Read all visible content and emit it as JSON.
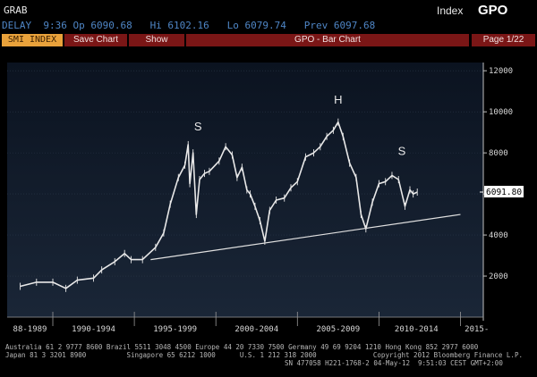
{
  "header": {
    "app_label": "GRAB",
    "index_label": "Index",
    "ticker": "GPO",
    "quote_line": "DELAY  9:36 Op 6090.68   Hi 6102.16   Lo 6079.74   Prev 6097.68"
  },
  "toolbar": {
    "security": "SMI INDEX",
    "save_chart_label": "Save Chart",
    "show_label": "Show",
    "chart_title": "GPO - Bar Chart",
    "page_label": "Page 1/22"
  },
  "chart_data": {
    "type": "line",
    "title": "GPO - Bar Chart",
    "xlabel": "",
    "ylabel": "",
    "ylim": [
      0,
      12000
    ],
    "yticks": [
      "2000",
      "4000",
      "6000",
      "8000",
      "10000",
      "12000"
    ],
    "period_labels": [
      "88-1989",
      "1990-1994",
      "1995-1999",
      "2000-2004",
      "2005-2009",
      "2010-2014",
      "2015-"
    ],
    "last_price_label": "6091.80",
    "pattern_labels": [
      "S",
      "H",
      "S"
    ],
    "series": [
      {
        "x": [
          1988.0,
          1989.0,
          1990.0,
          1990.8,
          1991.5,
          1992.5,
          1993.0,
          1993.8,
          1994.4,
          1994.8,
          1995.5,
          1996.3,
          1996.8,
          1997.2,
          1997.7,
          1998.1,
          1998.3,
          1998.4,
          1998.6,
          1998.8,
          1999.0,
          1999.3,
          1999.6,
          2000.2,
          2000.6,
          2001.0,
          2001.3,
          2001.6,
          2001.9,
          2002.1,
          2002.4,
          2002.7,
          2003.0,
          2003.3,
          2003.7,
          2004.2,
          2004.6,
          2005.0,
          2005.5,
          2006.0,
          2006.4,
          2006.8,
          2007.2,
          2007.5,
          2007.8,
          2008.2,
          2008.6,
          2008.9,
          2009.2,
          2009.6,
          2010.0,
          2010.4,
          2010.8,
          2011.2,
          2011.6,
          2011.9,
          2012.1,
          2012.35
        ],
        "y": [
          1500,
          1700,
          1700,
          1400,
          1800,
          1900,
          2300,
          2700,
          3100,
          2800,
          2800,
          3400,
          4100,
          5500,
          6800,
          7400,
          8400,
          6500,
          8000,
          5000,
          6700,
          7000,
          7100,
          7600,
          8300,
          7900,
          6800,
          7300,
          6200,
          6000,
          5400,
          4700,
          3700,
          5200,
          5700,
          5800,
          6300,
          6600,
          7800,
          8000,
          8300,
          8800,
          9100,
          9500,
          8800,
          7500,
          6800,
          5000,
          4300,
          5600,
          6500,
          6600,
          6900,
          6700,
          5400,
          6200,
          6000,
          6091.8
        ]
      },
      {
        "name": "support-trendline",
        "x": [
          1996.0,
          2015.0
        ],
        "y": [
          2800,
          5000
        ]
      }
    ]
  },
  "footer": {
    "line1": "Australia 61 2 9777 8600 Brazil 5511 3048 4500 Europe 44 20 7330 7500 Germany 49 69 9204 1210 Hong Kong 852 2977 6000",
    "line2": "Japan 81 3 3201 8900          Singapore 65 6212 1000      U.S. 1 212 318 2000              Copyright 2012 Bloomberg Finance L.P.",
    "line3": "SN 477058 H221-1768-2 04-May-12  9:51:03 CEST GMT+2:00"
  },
  "colors": {
    "background": "#000000",
    "plot_bg_top": "#0c1420",
    "plot_bg_bottom": "#182434",
    "price_line": "#e8e8e8",
    "trend_line": "#e0e0e0",
    "toolbar_red": "#7a1616",
    "security_amber": "#e9a23b",
    "quote_blue": "#4f86c6"
  }
}
